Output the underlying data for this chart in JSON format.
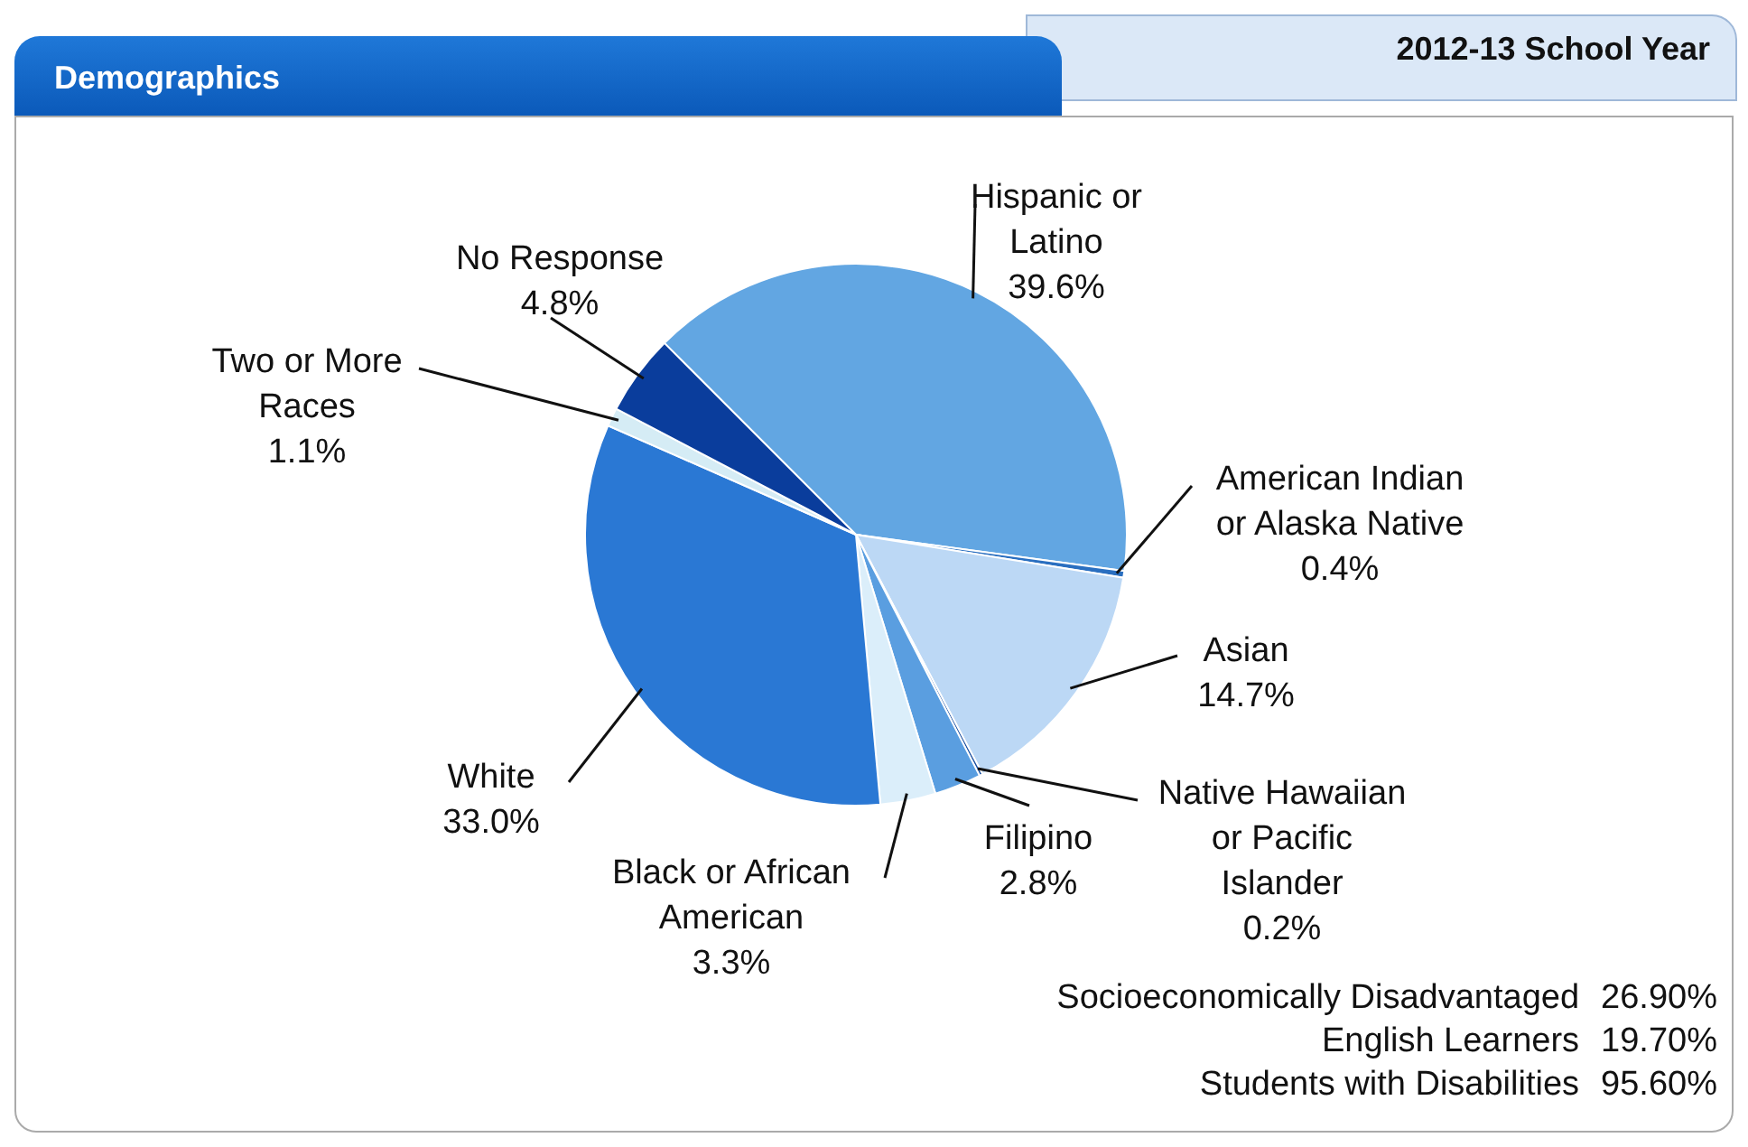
{
  "chart_data": {
    "type": "pie",
    "title": "Demographics",
    "subtitle": "2012-13 School Year",
    "categories": [
      "Hispanic or Latino",
      "American Indian or Alaska Native",
      "Asian",
      "Native Hawaiian or Pacific Islander",
      "Filipino",
      "Black or African American",
      "White",
      "Two or More Races",
      "No Response"
    ],
    "values": [
      39.6,
      0.4,
      14.7,
      0.2,
      2.8,
      3.3,
      33.0,
      1.1,
      4.8
    ],
    "value_labels": [
      "39.6%",
      "0.4%",
      "14.7%",
      "0.2%",
      "2.8%",
      "3.3%",
      "33.0%",
      "1.1%",
      "4.8%"
    ],
    "colors": [
      "#62a6e2",
      "#2a6fc0",
      "#bcd8f5",
      "#1a4fa0",
      "#5a9ee0",
      "#dbeefa",
      "#2a78d4",
      "#d5ecf5",
      "#0a3d9c"
    ],
    "legend": false,
    "annotations": [
      "Socioeconomically Disadvantaged 26.90%",
      "English Learners 19.70%",
      "Students with Disabilities 95.60%"
    ]
  }
}
